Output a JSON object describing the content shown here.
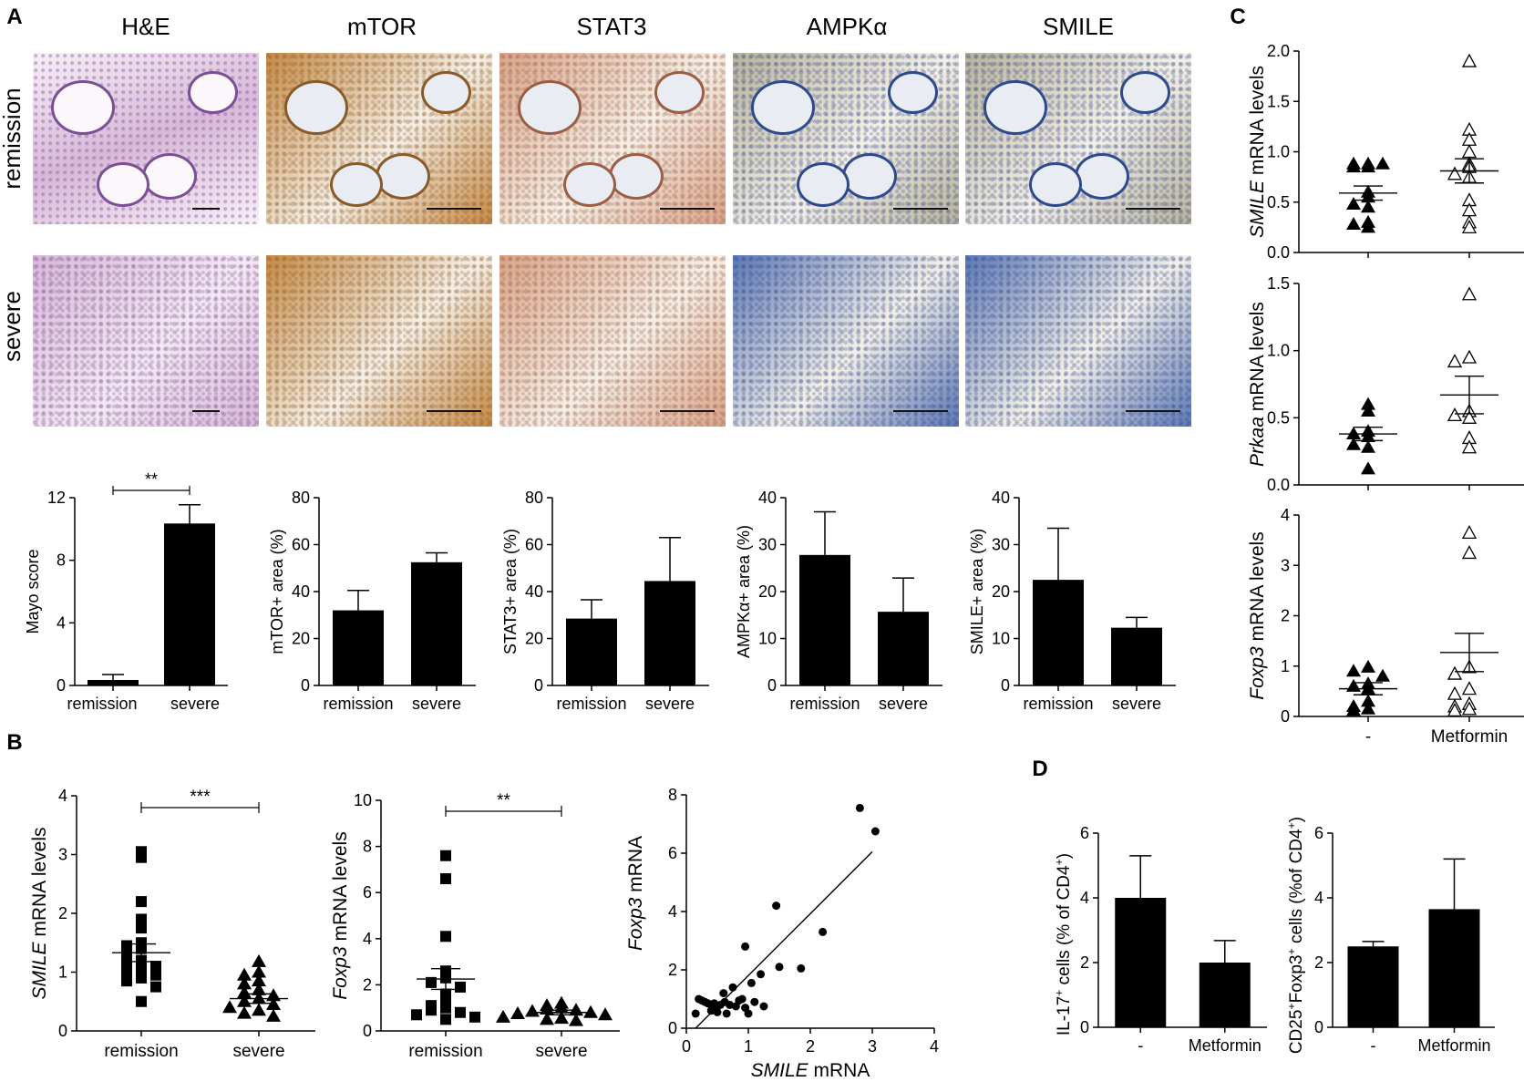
{
  "panel_labels": {
    "a": "A",
    "b": "B",
    "c": "C",
    "d": "D"
  },
  "histology": {
    "stain_titles": [
      "H&E",
      "mTOR",
      "STAT3",
      "AMPKα",
      "SMILE"
    ],
    "row_labels": [
      "remission",
      "severe"
    ],
    "stain_colors": {
      "he": "#d8b8d8",
      "he_dark": "#7a4f95",
      "brown": "#c68a45",
      "brown_dark": "#8a5a28",
      "stat3": "#d9a489",
      "stat3_dark": "#9b5e44",
      "blue": "#5d78b5",
      "blue_dark": "#2f4a8c",
      "smile": "#b9b29a"
    }
  },
  "colors": {
    "bar": "#000000",
    "axis": "#000000",
    "background": "#ffffff"
  },
  "chart_data": [
    {
      "id": "mayo",
      "type": "bar",
      "categories": [
        "remission",
        "severe"
      ],
      "values": [
        0.35,
        10.35
      ],
      "errors": [
        0.35,
        1.2
      ],
      "ylabel": "Mayo score",
      "ylim": [
        0,
        12
      ],
      "yticks": [
        "0",
        "4",
        "8",
        "12"
      ],
      "yticks_values": [
        0,
        4,
        8,
        12
      ],
      "significance": {
        "label": "**",
        "between": [
          0,
          1
        ]
      }
    },
    {
      "id": "mtor",
      "type": "bar",
      "categories": [
        "remission",
        "severe"
      ],
      "values": [
        32,
        52.5
      ],
      "errors": [
        8.5,
        4
      ],
      "ylabel": "mTOR+ area (%)",
      "ylim": [
        0,
        80
      ],
      "yticks": [
        "0",
        "20",
        "40",
        "60",
        "80"
      ],
      "yticks_values": [
        0,
        20,
        40,
        60,
        80
      ]
    },
    {
      "id": "stat3",
      "type": "bar",
      "categories": [
        "remission",
        "severe"
      ],
      "values": [
        28.5,
        44.5
      ],
      "errors": [
        8,
        18.5
      ],
      "ylabel": "STAT3+ area (%)",
      "ylim": [
        0,
        80
      ],
      "yticks": [
        "0",
        "20",
        "40",
        "60",
        "80"
      ],
      "yticks_values": [
        0,
        20,
        40,
        60,
        80
      ]
    },
    {
      "id": "ampk",
      "type": "bar",
      "categories": [
        "remission",
        "severe"
      ],
      "values": [
        27.8,
        15.7
      ],
      "errors": [
        9.2,
        7.2
      ],
      "ylabel": "AMPKα+ area (%)",
      "ylim": [
        0,
        40
      ],
      "yticks": [
        "0",
        "10",
        "20",
        "30",
        "40"
      ],
      "yticks_values": [
        0,
        10,
        20,
        30,
        40
      ]
    },
    {
      "id": "smile_area",
      "type": "bar",
      "categories": [
        "remission",
        "severe"
      ],
      "values": [
        22.5,
        12.3
      ],
      "errors": [
        11,
        2.2
      ],
      "ylabel": "SMILE+ area (%)",
      "ylim": [
        0,
        40
      ],
      "yticks": [
        "0",
        "10",
        "20",
        "30",
        "40"
      ],
      "yticks_values": [
        0,
        10,
        20,
        30,
        40
      ]
    },
    {
      "id": "b_smile",
      "type": "scatter",
      "categories": [
        "remission",
        "severe"
      ],
      "ylabel_italic": "SMILE",
      "ylabel_rest": " mRNA levels",
      "ylim": [
        0,
        4
      ],
      "yticks": [
        "0",
        "1",
        "2",
        "3",
        "4"
      ],
      "yticks_values": [
        0,
        1,
        2,
        3,
        4
      ],
      "significance": {
        "label": "***",
        "between": [
          0,
          1
        ]
      },
      "groups": [
        {
          "marker": "square",
          "mean": 1.33,
          "sem": 0.15,
          "values": [
            3.05,
            2.95,
            2.2,
            1.9,
            1.75,
            1.5,
            1.45,
            1.4,
            1.3,
            1.2,
            1.15,
            1.1,
            1.05,
            1.0,
            0.95,
            0.9,
            0.85,
            0.75,
            0.5
          ]
        },
        {
          "marker": "triangle",
          "mean": 0.55,
          "sem": 0.08,
          "values": [
            1.18,
            1.0,
            0.95,
            0.85,
            0.8,
            0.7,
            0.65,
            0.6,
            0.55,
            0.5,
            0.45,
            0.4,
            0.35,
            0.3,
            0.25
          ]
        }
      ]
    },
    {
      "id": "b_foxp3",
      "type": "scatter",
      "categories": [
        "remission",
        "severe"
      ],
      "ylabel_italic": "Foxp3",
      "ylabel_rest": " mRNA levels",
      "ylim": [
        0,
        10
      ],
      "yticks": [
        "0",
        "2",
        "4",
        "6",
        "8",
        "10"
      ],
      "yticks_values": [
        0,
        2,
        4,
        6,
        8,
        10
      ],
      "significance": {
        "label": "**",
        "between": [
          0,
          1
        ]
      },
      "groups": [
        {
          "marker": "square",
          "mean": 2.25,
          "sem": 0.45,
          "values": [
            7.6,
            6.6,
            4.1,
            2.6,
            2.3,
            2.1,
            1.9,
            1.6,
            1.3,
            1.1,
            1.0,
            0.9,
            0.8,
            0.7,
            0.6,
            0.5
          ]
        },
        {
          "marker": "triangle",
          "mean": 0.8,
          "sem": 0.1,
          "values": [
            1.2,
            1.1,
            1.0,
            0.95,
            0.9,
            0.85,
            0.8,
            0.75,
            0.7,
            0.6,
            0.55,
            0.5,
            0.45
          ]
        }
      ]
    },
    {
      "id": "b_corr",
      "type": "scatter",
      "xlabel_italic": "SMILE",
      "xlabel_rest": " mRNA",
      "ylabel_italic": "Foxp3",
      "ylabel_rest": " mRNA",
      "xlim": [
        0,
        4
      ],
      "ylim": [
        0,
        8
      ],
      "xticks": [
        "0",
        "1",
        "2",
        "3",
        "4"
      ],
      "xticks_values": [
        0,
        1,
        2,
        3,
        4
      ],
      "yticks": [
        "0",
        "2",
        "4",
        "6",
        "8"
      ],
      "yticks_values": [
        0,
        2,
        4,
        6,
        8
      ],
      "fit_line": {
        "x": [
          0.15,
          3.0
        ],
        "y": [
          0.0,
          6.05
        ]
      },
      "points": [
        [
          2.8,
          7.55
        ],
        [
          3.05,
          6.75
        ],
        [
          1.45,
          4.2
        ],
        [
          2.2,
          3.3
        ],
        [
          0.95,
          2.8
        ],
        [
          1.5,
          2.1
        ],
        [
          1.85,
          2.05
        ],
        [
          1.2,
          1.85
        ],
        [
          1.05,
          1.55
        ],
        [
          0.75,
          1.4
        ],
        [
          0.6,
          1.2
        ],
        [
          0.2,
          1.0
        ],
        [
          0.25,
          0.95
        ],
        [
          0.3,
          0.9
        ],
        [
          0.35,
          0.85
        ],
        [
          0.4,
          0.8
        ],
        [
          0.45,
          0.85
        ],
        [
          0.5,
          0.75
        ],
        [
          0.55,
          0.8
        ],
        [
          0.62,
          0.9
        ],
        [
          0.7,
          0.8
        ],
        [
          0.8,
          0.75
        ],
        [
          0.85,
          0.95
        ],
        [
          0.9,
          1.0
        ],
        [
          0.95,
          0.7
        ],
        [
          1.1,
          0.9
        ],
        [
          1.25,
          0.75
        ],
        [
          0.65,
          0.5
        ],
        [
          0.15,
          0.5
        ],
        [
          0.4,
          0.6
        ],
        [
          0.5,
          0.55
        ],
        [
          1.0,
          0.5
        ]
      ]
    },
    {
      "id": "c_smile",
      "type": "scatter",
      "ylabel_italic": "SMILE",
      "ylabel_rest": " mRNA levels",
      "ylim": [
        0,
        2
      ],
      "yticks": [
        "0.0",
        "0.5",
        "1.0",
        "1.5",
        "2.0"
      ],
      "yticks_values": [
        0,
        0.5,
        1.0,
        1.5,
        2.0
      ],
      "groups": [
        {
          "marker": "triangle",
          "mean": 0.59,
          "sem": 0.07,
          "values": [
            0.88,
            0.88,
            0.88,
            0.85,
            0.85,
            0.6,
            0.55,
            0.48,
            0.45,
            0.3,
            0.28,
            0.25
          ]
        },
        {
          "marker": "triangle-open",
          "mean": 0.81,
          "sem": 0.12,
          "values": [
            1.9,
            1.22,
            1.12,
            1.0,
            0.88,
            0.85,
            0.78,
            0.75,
            0.52,
            0.42,
            0.3,
            0.25
          ]
        }
      ]
    },
    {
      "id": "c_prkaa",
      "type": "scatter",
      "ylabel_italic": "Prkaa",
      "ylabel_rest": " mRNA levels",
      "ylim": [
        0,
        1.5
      ],
      "yticks": [
        "0.0",
        "0.5",
        "1.0",
        "1.5"
      ],
      "yticks_values": [
        0,
        0.5,
        1.0,
        1.5
      ],
      "groups": [
        {
          "marker": "triangle",
          "mean": 0.38,
          "sem": 0.05,
          "values": [
            0.6,
            0.55,
            0.4,
            0.38,
            0.36,
            0.3,
            0.28,
            0.12
          ]
        },
        {
          "marker": "triangle-open",
          "mean": 0.67,
          "sem": 0.14,
          "values": [
            1.42,
            0.95,
            0.92,
            0.55,
            0.52,
            0.5,
            0.35,
            0.28
          ]
        }
      ]
    },
    {
      "id": "c_foxp3",
      "type": "scatter",
      "categories": [
        "-",
        "Metformin"
      ],
      "ylabel_italic": "Foxp3",
      "ylabel_rest": " mRNA levels",
      "ylim": [
        0,
        4
      ],
      "yticks": [
        "0",
        "1",
        "2",
        "3",
        "4"
      ],
      "yticks_values": [
        0,
        1,
        2,
        3,
        4
      ],
      "groups": [
        {
          "marker": "triangle",
          "mean": 0.55,
          "sem": 0.12,
          "values": [
            0.98,
            0.9,
            0.8,
            0.65,
            0.6,
            0.55,
            0.3,
            0.2,
            0.15,
            0.12
          ]
        },
        {
          "marker": "triangle-open",
          "mean": 1.27,
          "sem": 0.38,
          "values": [
            3.65,
            3.25,
            0.98,
            0.85,
            0.55,
            0.45,
            0.25,
            0.2,
            0.15,
            0.12
          ]
        }
      ]
    },
    {
      "id": "d_il17",
      "type": "bar",
      "categories": [
        "-",
        "Metformin"
      ],
      "values": [
        4.0,
        2.0
      ],
      "errors": [
        1.3,
        0.68
      ],
      "ylabel_lines": [
        [
          {
            "t": "IL-17"
          },
          {
            "t": "+",
            "sup": true
          },
          {
            "t": " cells (% of CD4"
          },
          {
            "t": "+",
            "sup": true
          },
          {
            "t": ")"
          }
        ]
      ],
      "ylim": [
        0,
        6
      ],
      "yticks": [
        "0",
        "2",
        "4",
        "6"
      ],
      "yticks_values": [
        0,
        2,
        4,
        6
      ]
    },
    {
      "id": "d_treg",
      "type": "bar",
      "categories": [
        "-",
        "Metformin"
      ],
      "values": [
        2.5,
        3.65
      ],
      "errors": [
        0.15,
        1.55
      ],
      "ylabel_lines": [
        [
          {
            "t": "CD25"
          },
          {
            "t": "+",
            "sup": true
          },
          {
            "t": "Foxp3"
          },
          {
            "t": "+",
            "sup": true
          },
          {
            "t": " cells  (%of CD4"
          },
          {
            "t": "+",
            "sup": true
          },
          {
            "t": ")"
          }
        ]
      ],
      "ylim": [
        0,
        6
      ],
      "yticks": [
        "0",
        "2",
        "4",
        "6"
      ],
      "yticks_values": [
        0,
        2,
        4,
        6
      ]
    }
  ]
}
